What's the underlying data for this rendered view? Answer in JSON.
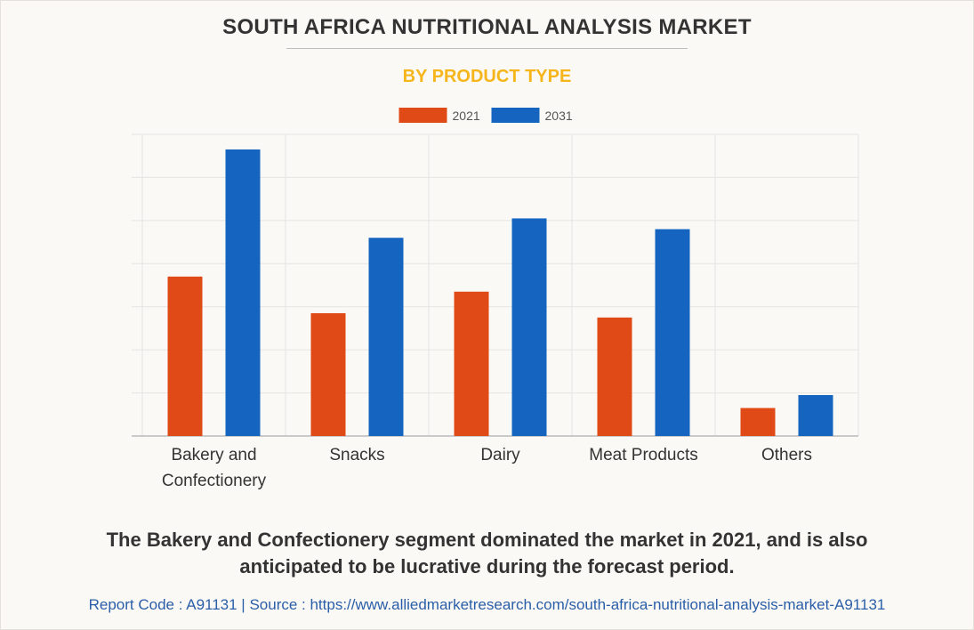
{
  "header": {
    "title": "SOUTH AFRICA NUTRITIONAL ANALYSIS MARKET",
    "subtitle": "BY PRODUCT TYPE"
  },
  "chart_data": {
    "type": "bar",
    "title": "SOUTH AFRICA NUTRITIONAL ANALYSIS MARKET",
    "subtitle": "BY PRODUCT TYPE",
    "categories": [
      "Bakery and Confectionery",
      "Snacks",
      "Dairy",
      "Meat Products",
      "Others"
    ],
    "category_lines": [
      [
        "Bakery and",
        "Confectionery"
      ],
      [
        "Snacks"
      ],
      [
        "Dairy"
      ],
      [
        "Meat Products"
      ],
      [
        "Others"
      ]
    ],
    "series": [
      {
        "name": "2021",
        "color": "#e04a17",
        "values": [
          37,
          28.5,
          33.5,
          27.5,
          6.5
        ]
      },
      {
        "name": "2031",
        "color": "#1565c0",
        "values": [
          66.5,
          46,
          50.5,
          48,
          9.5
        ]
      }
    ],
    "xlabel": "",
    "ylabel": "",
    "ylim": [
      0,
      70
    ],
    "y_ticks": [
      0,
      10,
      20,
      30,
      40,
      50,
      60,
      70
    ],
    "y_tick_labels_shown": false,
    "grid": true,
    "legend_position": "top-center"
  },
  "caption": {
    "line1": "The Bakery and Confectionery segment dominated the market in 2021, and is also",
    "line2": "anticipated to be lucrative during the forecast period."
  },
  "footer": {
    "text": "Report Code : A91131  |  Source : https://www.alliedmarketresearch.com/south-africa-nutritional-analysis-market-A91131"
  },
  "colors": {
    "accent": "#f5b51b",
    "link": "#2b5ea8",
    "grid": "#e4e4e4"
  }
}
